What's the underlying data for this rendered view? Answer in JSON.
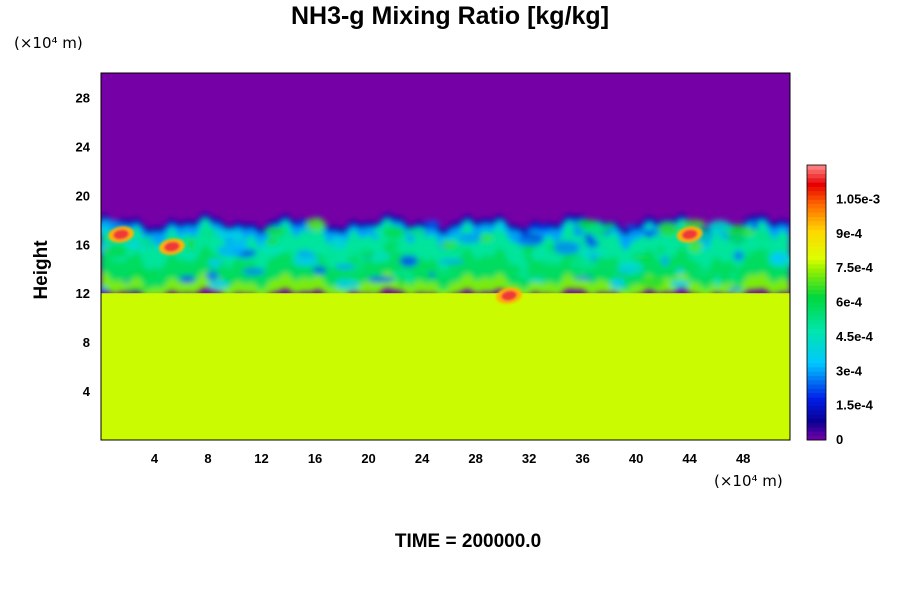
{
  "title": "NH3-g Mixing Ratio [kg/kg]",
  "y_unit": "(×10⁴ m)",
  "x_unit": "(×10⁴ m)",
  "time_label": "TIME = ",
  "time_value": "200000.0",
  "colors": {
    "background_top": "#7400a6",
    "lower_layer": "#dcff00"
  },
  "chart_data": {
    "type": "heatmap",
    "title": "NH3-g Mixing Ratio [kg/kg]",
    "ylabel": "Height",
    "xlabel": "",
    "x_unit": "(×10⁴ m)",
    "y_unit": "(×10⁴ m)",
    "xlim": [
      0,
      51.5
    ],
    "ylim": [
      0,
      30
    ],
    "x_ticks": [
      "4",
      "8",
      "12",
      "16",
      "20",
      "24",
      "28",
      "32",
      "36",
      "40",
      "44",
      "48"
    ],
    "y_ticks": [
      "4",
      "8",
      "12",
      "16",
      "20",
      "24",
      "28"
    ],
    "colorbar": {
      "min": 0,
      "max": 0.0012,
      "tick_labels": [
        "0",
        "1.5e-4",
        "3e-4",
        "4.5e-4",
        "6e-4",
        "7.5e-4",
        "9e-4",
        "1.05e-3"
      ],
      "tick_values": [
        0,
        0.00015,
        0.0003,
        0.00045,
        0.0006,
        0.00075,
        0.0009,
        0.00105
      ]
    },
    "field_summary": {
      "upper_layer_value": 0,
      "lower_layer_value": 0.00078,
      "cloud_top_height": 17.5,
      "mixed_layer_base_height": 12,
      "peak_value": 0.00115,
      "peak_locations_x": [
        1.5,
        5.3,
        30.5,
        44
      ]
    }
  }
}
